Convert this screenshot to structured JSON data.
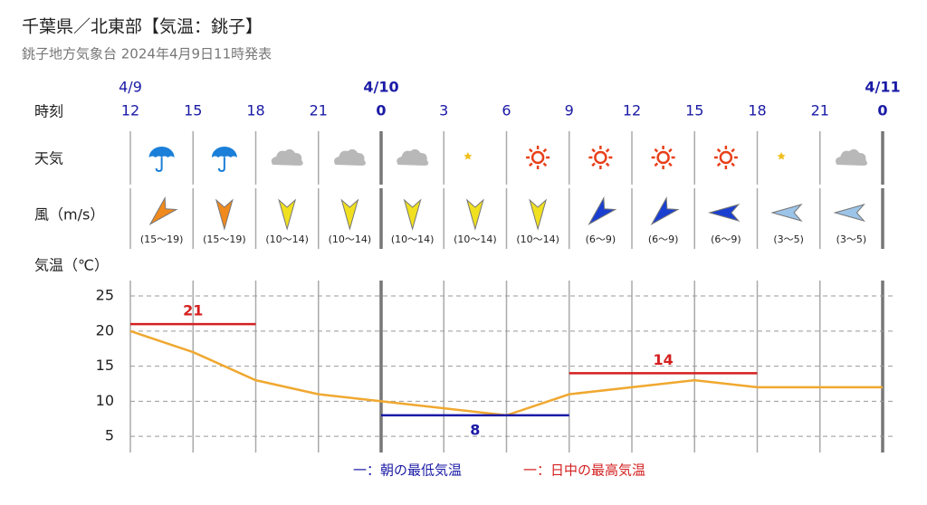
{
  "header": {
    "title": "千葉県／北東部【気温：銚子】",
    "subtitle": "銚子地方気象台 2024年4月9日11時発表"
  },
  "row_labels": {
    "time": "時刻",
    "weather": "天気",
    "wind": "風（m/s）"
  },
  "wind_speeds": [
    "(15〜19)",
    "(15〜19)",
    "(10〜14)",
    "(10〜14)",
    "(10〜14)",
    "(10〜14)",
    "(10〜14)",
    "(6〜9)",
    "(6〜9)",
    "(6〜9)",
    "(3〜5)",
    "(3〜5)"
  ],
  "chart_data": {
    "type": "line",
    "y_label": "気温（℃）",
    "categories": [
      "12",
      "15",
      "18",
      "21",
      "0",
      "3",
      "6",
      "9",
      "12",
      "15",
      "18",
      "21",
      "0"
    ],
    "date_labels": [
      "4/9",
      null,
      null,
      null,
      "4/10",
      null,
      null,
      null,
      null,
      null,
      null,
      null,
      "4/11"
    ],
    "series": [
      {
        "color": "#f0a830",
        "values": [
          20,
          17,
          13,
          11,
          10,
          9,
          8,
          11,
          12,
          13,
          12,
          12,
          12
        ]
      }
    ],
    "bands": [
      {
        "name": "一：朝の最低気温",
        "color": "#1a1aa6",
        "segments": [
          {
            "from": 4,
            "to": 7,
            "value": 8
          }
        ]
      },
      {
        "name": "一：日中の最高気温",
        "color": "#d42020",
        "segments": [
          {
            "from": 0,
            "to": 2,
            "value": 21
          },
          {
            "from": 7,
            "to": 10,
            "value": 14
          }
        ]
      }
    ],
    "ylim": [
      2.7,
      27.2
    ],
    "yticks": [
      5,
      10,
      15,
      20,
      25
    ],
    "grid": true
  }
}
